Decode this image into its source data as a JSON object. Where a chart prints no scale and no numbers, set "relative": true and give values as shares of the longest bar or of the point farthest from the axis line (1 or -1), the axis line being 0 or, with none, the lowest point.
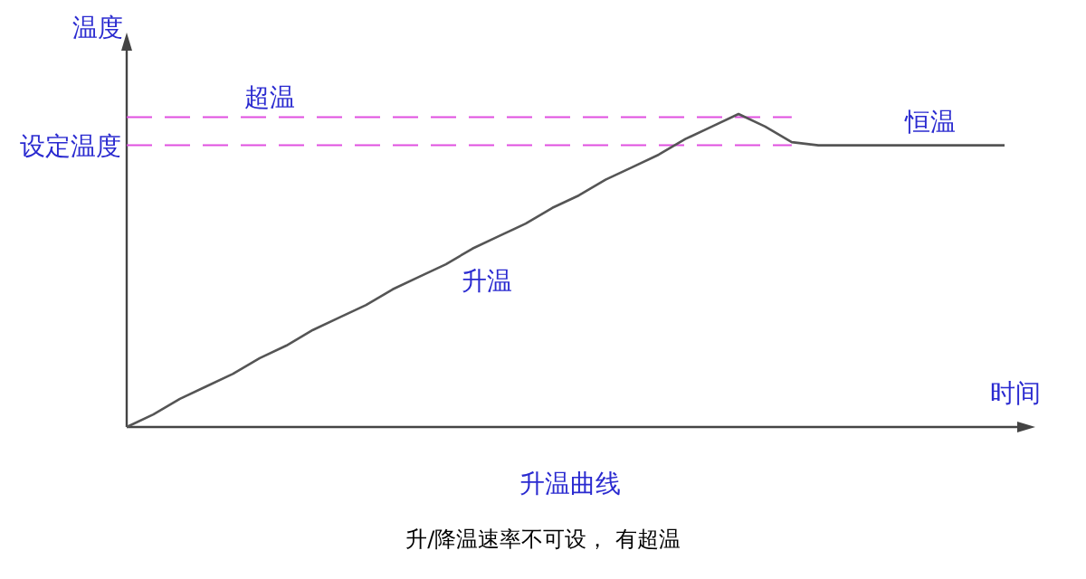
{
  "chart_data": {
    "type": "line",
    "relative": true,
    "xlabel": "时间",
    "ylabel": "温度",
    "title": "升温曲线",
    "categories": [
      null,
      null,
      null,
      null,
      null,
      null,
      null,
      null,
      null,
      null,
      null,
      null,
      null,
      null,
      null,
      null,
      null,
      null,
      null,
      null,
      null,
      null,
      null,
      null,
      null,
      null,
      null,
      null,
      null,
      null,
      null,
      null,
      null,
      null
    ],
    "series": [
      {
        "color": "#555555",
        "values": [
          0,
          0.04,
          0.09,
          0.13,
          0.17,
          0.22,
          0.26,
          0.31,
          0.35,
          0.39,
          0.44,
          0.48,
          0.52,
          0.57,
          0.61,
          0.65,
          0.7,
          0.74,
          0.79,
          0.83,
          0.87,
          0.92,
          0.96,
          1.0,
          0.96,
          0.91,
          0.9,
          0.9,
          0.9,
          0.9,
          0.9,
          0.9,
          0.9,
          0.9
        ]
      }
    ],
    "line_style": "solid",
    "ref_lines": [
      {
        "axis": "y",
        "value": 0.99,
        "label": "超温",
        "color": "#e050e0",
        "line_style": "dashed"
      },
      {
        "axis": "y",
        "value": 0.9,
        "label": "设定温度",
        "color": "#e050e0",
        "line_style": "dashed"
      }
    ],
    "annotations": [
      "升温",
      "恒温",
      "升/降温速率不可设， 有超温"
    ]
  }
}
